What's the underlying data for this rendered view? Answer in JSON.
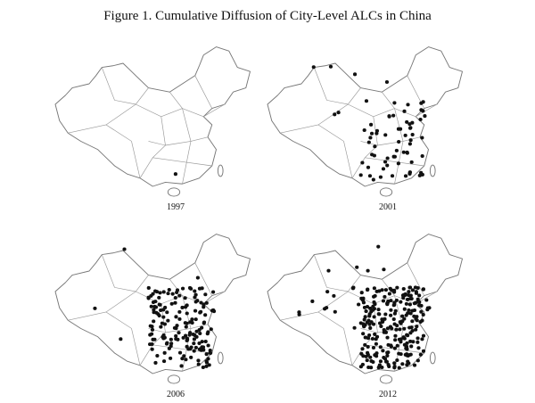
{
  "title": "Figure 1. Cumulative Diffusion of City-Level ALCs in China",
  "panels": [
    {
      "label": "1997"
    },
    {
      "label": "2001"
    },
    {
      "label": "2006"
    },
    {
      "label": "2012"
    }
  ]
}
